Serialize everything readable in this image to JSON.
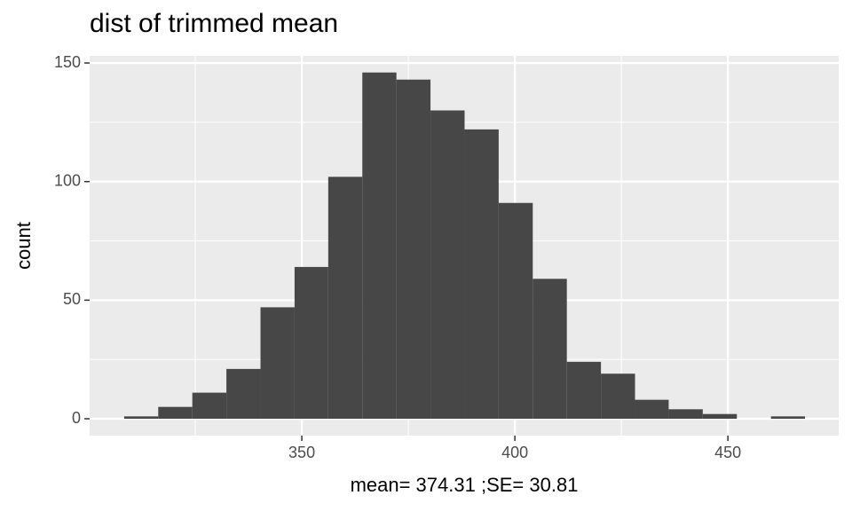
{
  "chart_data": {
    "type": "histogram",
    "title": "dist of trimmed mean",
    "x_label": "mean= 374.31 ;SE= 30.81",
    "y_label": "count",
    "bins": [
      308.3,
      316.3,
      324.3,
      332.3,
      340.3,
      348.3,
      356.2,
      364.2,
      372.2,
      380.2,
      388.2,
      396.2,
      404.2,
      412.2,
      420.2,
      428.2,
      436.1,
      444.1,
      452.1,
      460.1,
      468.1
    ],
    "values": [
      1,
      5,
      11,
      21,
      47,
      64,
      102,
      146,
      143,
      130,
      122,
      91,
      59,
      24,
      19,
      8,
      4,
      2,
      0,
      1
    ],
    "color": "#474747",
    "xlim": [
      300.2,
      476.0
    ],
    "ylim": [
      -7.1,
      153.0
    ],
    "xticks": [
      350,
      400,
      450
    ],
    "yticks": [
      0,
      50,
      100,
      150
    ],
    "x_minor_grid": [
      325,
      375,
      425
    ],
    "y_minor_grid": [
      25,
      75,
      125
    ],
    "grid": true
  }
}
